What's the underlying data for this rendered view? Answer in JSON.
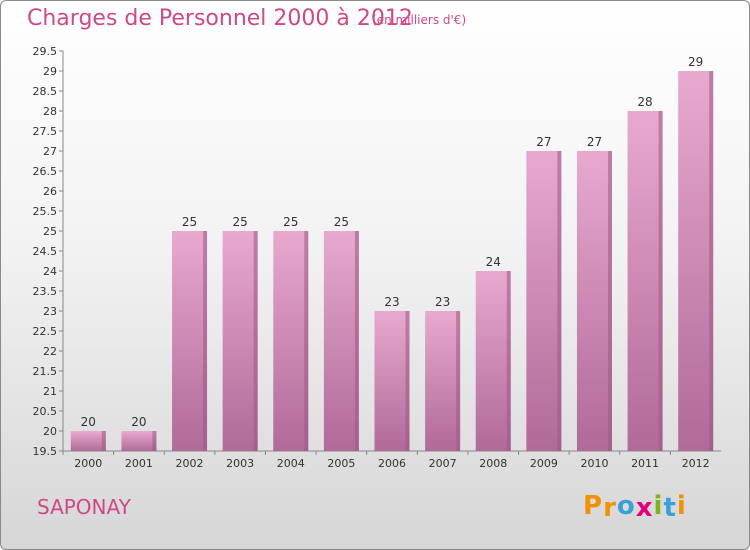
{
  "header": {
    "title": "Charges de Personnel 2000 à 2012",
    "subtitle": "(en milliers d'€)"
  },
  "footer": {
    "town": "SAPONAY",
    "logo": [
      "P",
      "r",
      "o",
      "x",
      "i",
      "t",
      "i"
    ],
    "logo_colors": [
      "#f39200",
      "#f39200",
      "#3aa0d8",
      "#e4007c",
      "#7ab51d",
      "#3aa0d8",
      "#f39200"
    ]
  },
  "colors": {
    "bar_top": "#e8a9cf",
    "bar_bottom": "#b06a98",
    "bar_shade": "#9c5784",
    "text": "#333333",
    "accent": "#d0488a"
  },
  "chart_data": {
    "type": "bar",
    "title": "Charges de Personnel 2000 à 2012",
    "subtitle": "(en milliers d'€)",
    "categories": [
      "2000",
      "2001",
      "2002",
      "2003",
      "2004",
      "2005",
      "2006",
      "2007",
      "2008",
      "2009",
      "2010",
      "2011",
      "2012"
    ],
    "values": [
      20,
      20,
      25,
      25,
      25,
      25,
      23,
      23,
      24,
      27,
      27,
      28,
      29
    ],
    "ylim": [
      19.5,
      29.5
    ],
    "yticks": [
      "19.5",
      "20",
      "20.5",
      "21",
      "21.5",
      "22",
      "22.5",
      "23",
      "23.5",
      "24",
      "24.5",
      "25",
      "25.5",
      "26",
      "26.5",
      "27",
      "27.5",
      "28",
      "28.5",
      "29",
      "29.5"
    ],
    "grid": false,
    "legend": "none"
  }
}
